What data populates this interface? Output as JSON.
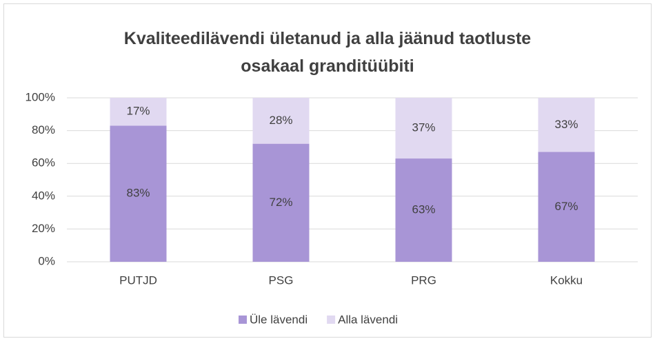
{
  "chart_data": {
    "type": "stacked_bar",
    "title": "Kvaliteedilävendi ületanud ja alla jäänud taotluste osakaal granditüübiti",
    "categories": [
      "PUTJD",
      "PSG",
      "PRG",
      "Kokku"
    ],
    "series": [
      {
        "name": "Üle lävendi",
        "color": "#a895d6",
        "values": [
          83,
          72,
          63,
          67
        ],
        "value_labels": [
          "83%",
          "72%",
          "63%",
          "67%"
        ]
      },
      {
        "name": "Alla lävendi",
        "color": "#e1d9f1",
        "values": [
          17,
          28,
          37,
          33
        ],
        "value_labels": [
          "17%",
          "28%",
          "37%",
          "33%"
        ]
      }
    ],
    "ylim": [
      0,
      100
    ],
    "yticks": [
      {
        "value": 0,
        "label": "0%"
      },
      {
        "value": 20,
        "label": "20%"
      },
      {
        "value": 40,
        "label": "40%"
      },
      {
        "value": 60,
        "label": "60%"
      },
      {
        "value": 80,
        "label": "80%"
      },
      {
        "value": 100,
        "label": "100%"
      }
    ],
    "grid": true,
    "legend": "bottom"
  }
}
